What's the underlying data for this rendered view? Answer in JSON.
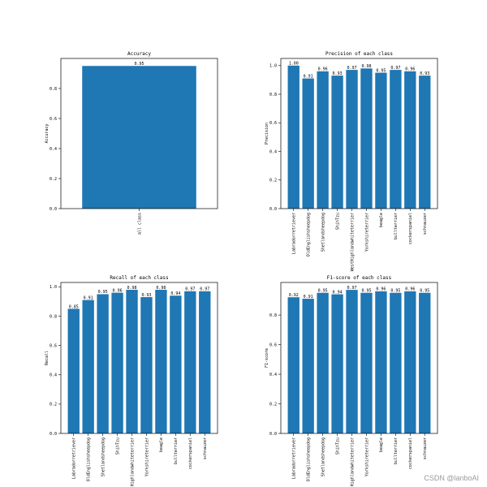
{
  "colors": {
    "bar": "#1f77b4"
  },
  "watermark": "CSDN @lanboAI",
  "chart_data": [
    {
      "type": "bar",
      "title": "Accuracy",
      "xlabel": "",
      "ylabel": "Accuracy",
      "categories": [
        "all class"
      ],
      "values": [
        0.95
      ],
      "value_labels": [
        "0.95"
      ],
      "ylim": [
        0,
        1.0
      ],
      "yticks": [
        0.0,
        0.2,
        0.4,
        0.6,
        0.8
      ],
      "ytick_labels": [
        "0.0",
        "0.2",
        "0.4",
        "0.6",
        "0.8"
      ],
      "grid": false
    },
    {
      "type": "bar",
      "title": "Precision of each class",
      "xlabel": "",
      "ylabel": "Precision",
      "categories": [
        "Labradorretriever",
        "OldEnglishsheepdog",
        "Shetlandsheepdog",
        "ShihTzu",
        "WestHighlandwhiteterrier",
        "Yorkshireterrier",
        "beagle",
        "bullterrier",
        "cockerspaniel",
        "schnauzer"
      ],
      "values": [
        1.0,
        0.91,
        0.96,
        0.93,
        0.97,
        0.98,
        0.95,
        0.97,
        0.96,
        0.93
      ],
      "value_labels": [
        "1.00",
        "0.91",
        "0.96",
        "0.93",
        "0.97",
        "0.98",
        "0.95",
        "0.97",
        "0.96",
        "0.93"
      ],
      "ylim": [
        0,
        1.05
      ],
      "yticks": [
        0.0,
        0.2,
        0.4,
        0.6,
        0.8,
        1.0
      ],
      "ytick_labels": [
        "0.0",
        "0.2",
        "0.4",
        "0.6",
        "0.8",
        "1.0"
      ],
      "grid": false
    },
    {
      "type": "bar",
      "title": "Recall of each class",
      "xlabel": "",
      "ylabel": "Recall",
      "categories": [
        "Labradorretriever",
        "OldEnglishsheepdog",
        "Shetlandsheepdog",
        "ShihTzu",
        "Highlandwhiteterrier",
        "Yorkshireterrier",
        "beagle",
        "bullterrier",
        "cockerspaniel",
        "schnauzer"
      ],
      "values": [
        0.85,
        0.91,
        0.95,
        0.96,
        0.98,
        0.93,
        0.98,
        0.94,
        0.97,
        0.97
      ],
      "value_labels": [
        "0.85",
        "0.91",
        "0.95",
        "0.96",
        "0.98",
        "0.93",
        "0.98",
        "0.94",
        "0.97",
        "0.97"
      ],
      "ylim": [
        0,
        1.03
      ],
      "yticks": [
        0.0,
        0.2,
        0.4,
        0.6,
        0.8,
        1.0
      ],
      "ytick_labels": [
        "0.0",
        "0.2",
        "0.4",
        "0.6",
        "0.8",
        "1.0"
      ],
      "grid": false
    },
    {
      "type": "bar",
      "title": "F1-score of each class",
      "xlabel": "",
      "ylabel": "F1-score",
      "categories": [
        "Labradorretriever",
        "OldEnglishsheepdog",
        "Shetlandsheepdog",
        "ShihTzu",
        "Highlandwhiteterrier",
        "Yorkshireterrier",
        "beagle",
        "bullterrier",
        "cockerspaniel",
        "schnauzer"
      ],
      "values": [
        0.92,
        0.91,
        0.95,
        0.94,
        0.97,
        0.95,
        0.96,
        0.95,
        0.96,
        0.95
      ],
      "value_labels": [
        "0.92",
        "0.91",
        "0.95",
        "0.94",
        "0.97",
        "0.95",
        "0.96",
        "0.95",
        "0.96",
        "0.95"
      ],
      "ylim": [
        0,
        1.02
      ],
      "yticks": [
        0.0,
        0.2,
        0.4,
        0.6,
        0.8
      ],
      "ytick_labels": [
        "0.0",
        "0.2",
        "0.4",
        "0.6",
        "0.8"
      ],
      "grid": false
    }
  ]
}
